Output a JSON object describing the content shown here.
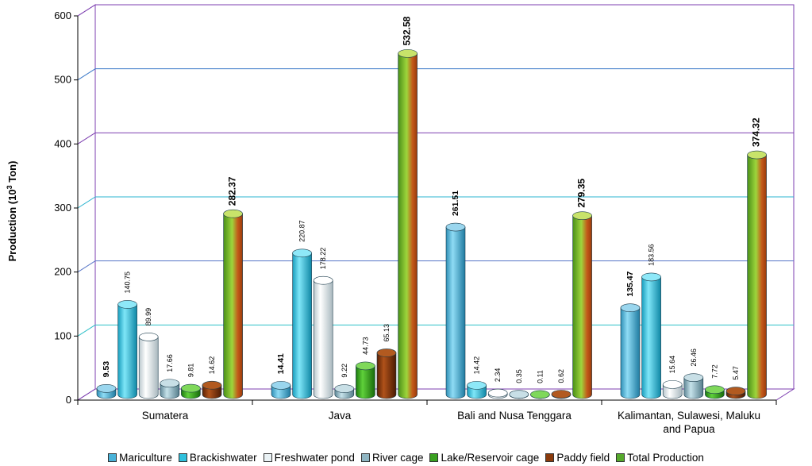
{
  "chart_data": {
    "type": "bar",
    "title": "",
    "ylabel": "Production (10³ Ton)",
    "ylabel_main": "Production (10",
    "ylabel_sup": "3",
    "ylabel_tail": " Ton)",
    "xlabel": "",
    "ylim": [
      0,
      600
    ],
    "yticks": [
      "0",
      "100",
      "200",
      "300",
      "400",
      "500",
      "600"
    ],
    "categories": [
      "Sumatera",
      "Java",
      "Bali and Nusa Tenggara",
      "Kalimantan, Sulawesi, Maluku and Papua"
    ],
    "category_lines": [
      [
        "Sumatera"
      ],
      [
        "Java"
      ],
      [
        "Bali and Nusa Tenggara"
      ],
      [
        "Kalimantan, Sulawesi, Maluku",
        "and Papua"
      ]
    ],
    "legend_position": "bottom",
    "grid": true,
    "series": [
      {
        "name": "Mariculture",
        "color": "#49b2d8",
        "values": [
          9.53,
          14.41,
          261.51,
          135.47
        ],
        "labels": [
          "9.53",
          "14.41",
          "261.51",
          "135.47"
        ],
        "label_style": [
          "bold",
          "bold",
          "bold",
          "bold"
        ]
      },
      {
        "name": "Brackishwater",
        "color": "#2fc0dc",
        "values": [
          140.75,
          220.87,
          14.42,
          183.56
        ],
        "labels": [
          "140.75",
          "220.87",
          "14.42",
          "183.56"
        ],
        "label_style": [
          "small",
          "small",
          "small",
          "small"
        ]
      },
      {
        "name": "Freshwater pond",
        "color": "#eaf2f5",
        "values": [
          89.99,
          178.22,
          2.34,
          15.64
        ],
        "labels": [
          "89.99",
          "178.22",
          "2.34",
          "15.64"
        ],
        "label_style": [
          "small",
          "small",
          "small",
          "small"
        ]
      },
      {
        "name": "River cage",
        "color": "#8fb5c2",
        "values": [
          17.66,
          9.22,
          0.35,
          26.46
        ],
        "labels": [
          "17.66",
          "9.22",
          "0.35",
          "26.46"
        ],
        "label_style": [
          "small",
          "small",
          "small",
          "small"
        ]
      },
      {
        "name": "Lake/Reservoir cage",
        "color": "#3aa020",
        "values": [
          9.81,
          44.73,
          0.11,
          7.72
        ],
        "labels": [
          "9.81",
          "44.73",
          "0.11",
          "7.72"
        ],
        "label_style": [
          "small",
          "small",
          "small",
          "small"
        ]
      },
      {
        "name": "Paddy field",
        "color": "#8a3a0c",
        "values": [
          14.62,
          65.13,
          0.62,
          5.47
        ],
        "labels": [
          "14.62",
          "65.13",
          "0.62",
          "5.47"
        ],
        "label_style": [
          "small",
          "small",
          "small",
          "small"
        ]
      },
      {
        "name": "Total Production",
        "color": "#56a92c",
        "values": [
          282.37,
          532.58,
          279.35,
          374.32
        ],
        "labels": [
          "282.37",
          "532.58",
          "279.35",
          "374.32"
        ],
        "label_style": [
          "xbold",
          "xbold",
          "xbold",
          "xbold"
        ]
      }
    ]
  }
}
